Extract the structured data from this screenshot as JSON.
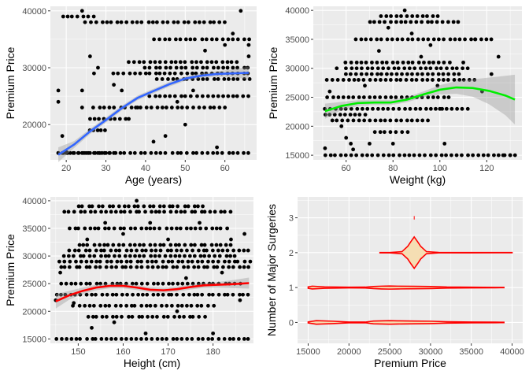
{
  "chart_data": [
    {
      "type": "scatter",
      "xlabel": "Age (years)",
      "ylabel": "Premium Price",
      "xlim": [
        16,
        68
      ],
      "ylim": [
        13800,
        40800
      ],
      "xticks": [
        20,
        30,
        40,
        50,
        60
      ],
      "yticks": [
        20000,
        30000,
        40000
      ],
      "grid": true,
      "smooth_color": "#3366ff",
      "smooth": {
        "x": [
          18,
          22,
          26,
          30,
          34,
          38,
          42,
          46,
          50,
          54,
          58,
          62,
          66
        ],
        "y": [
          14700,
          16500,
          18800,
          20800,
          22900,
          24700,
          25900,
          27100,
          28100,
          28600,
          28900,
          29000,
          29100
        ],
        "band": [
          1300,
          600,
          450,
          450,
          400,
          400,
          400,
          400,
          400,
          400,
          500,
          700,
          1100
        ]
      },
      "point_groups": [
        {
          "y": 15000,
          "x": [
            18,
            66
          ],
          "xs": [
            18,
            19,
            20,
            21,
            22,
            23,
            24,
            25,
            26,
            27,
            28,
            29,
            30,
            31,
            32
          ]
        },
        {
          "y": 23000,
          "x": [
            27,
            60
          ]
        },
        {
          "y": 25000,
          "x": [
            41,
            66
          ]
        },
        {
          "y": 28000,
          "x": [
            43,
            66
          ]
        },
        {
          "y": 29000,
          "x": [
            32,
            66
          ]
        },
        {
          "y": 30000,
          "x": [
            40,
            66
          ]
        },
        {
          "y": 31000,
          "x": [
            36,
            63
          ]
        },
        {
          "y": 35000,
          "x": [
            42,
            66
          ]
        },
        {
          "y": 38000,
          "x": [
            25,
            60
          ]
        },
        {
          "y": 39000,
          "x": [
            19,
            27
          ]
        },
        {
          "y": 21000,
          "x": [
            26,
            36
          ]
        },
        {
          "y": 19000,
          "x": [
            26,
            30
          ]
        }
      ],
      "extra_points": [
        [
          18,
          26000
        ],
        [
          18,
          24000
        ],
        [
          19,
          18000
        ],
        [
          20,
          15200
        ],
        [
          24,
          26000
        ],
        [
          24,
          23000
        ],
        [
          24,
          40000
        ],
        [
          26,
          32000
        ],
        [
          27,
          29000
        ],
        [
          28,
          30000
        ],
        [
          32,
          27000
        ],
        [
          34,
          26000
        ],
        [
          38,
          23000
        ],
        [
          42,
          17000
        ],
        [
          45,
          18000
        ],
        [
          48,
          24000
        ],
        [
          50,
          20000
        ],
        [
          52,
          26000
        ],
        [
          55,
          33000
        ],
        [
          58,
          16000
        ],
        [
          60,
          34000
        ],
        [
          62,
          36000
        ],
        [
          64,
          40000
        ],
        [
          66,
          32000
        ],
        [
          66,
          34000
        ]
      ]
    },
    {
      "type": "scatter",
      "xlabel": "Weight (kg)",
      "ylabel": "Premium Price",
      "xlim": [
        46,
        135
      ],
      "ylim": [
        14200,
        40700
      ],
      "xticks": [
        60,
        80,
        100,
        120
      ],
      "yticks": [
        15000,
        20000,
        25000,
        30000,
        35000,
        40000
      ],
      "grid": true,
      "smooth_color": "#00ee00",
      "smooth": {
        "x": [
          51,
          58,
          65,
          72,
          79,
          86,
          93,
          100,
          107,
          114,
          121,
          128,
          132
        ],
        "y": [
          22600,
          23500,
          24000,
          24100,
          24100,
          24600,
          25500,
          26300,
          26700,
          26600,
          26100,
          25300,
          24600
        ],
        "band": [
          1300,
          700,
          500,
          450,
          450,
          450,
          500,
          800,
          1100,
          1500,
          2300,
          3400,
          4300
        ]
      },
      "point_groups": [
        {
          "y": 15000,
          "x": [
            51,
            132
          ]
        },
        {
          "y": 23000,
          "x": [
            51,
            112
          ]
        },
        {
          "y": 25000,
          "x": [
            52,
            104
          ]
        },
        {
          "y": 28000,
          "x": [
            52,
            115
          ]
        },
        {
          "y": 29000,
          "x": [
            60,
            108
          ]
        },
        {
          "y": 30000,
          "x": [
            60,
            112
          ]
        },
        {
          "y": 31000,
          "x": [
            60,
            104
          ]
        },
        {
          "y": 35000,
          "x": [
            64,
            122
          ]
        },
        {
          "y": 38000,
          "x": [
            70,
            108
          ]
        },
        {
          "y": 39000,
          "x": [
            75,
            99
          ]
        },
        {
          "y": 21000,
          "x": [
            54,
            95
          ]
        },
        {
          "y": 19000,
          "x": [
            72,
            86
          ]
        },
        {
          "y": 22000,
          "x": [
            51,
            68
          ]
        }
      ],
      "extra_points": [
        [
          51,
          16200
        ],
        [
          53,
          26000
        ],
        [
          56,
          30000
        ],
        [
          58,
          20000
        ],
        [
          60,
          18000
        ],
        [
          62,
          17000
        ],
        [
          63,
          16000
        ],
        [
          68,
          27000
        ],
        [
          70,
          17000
        ],
        [
          74,
          33000
        ],
        [
          78,
          37000
        ],
        [
          80,
          17000
        ],
        [
          85,
          40000
        ],
        [
          88,
          36000
        ],
        [
          92,
          32000
        ],
        [
          96,
          34000
        ],
        [
          99,
          27000
        ],
        [
          100,
          23000
        ],
        [
          102,
          17000
        ],
        [
          110,
          31000
        ],
        [
          115,
          35000
        ],
        [
          118,
          26000
        ],
        [
          122,
          29000
        ],
        [
          125,
          32000
        ],
        [
          127,
          15000
        ],
        [
          130,
          15000
        ]
      ]
    },
    {
      "type": "scatter",
      "xlabel": "Height (cm)",
      "ylabel": "Premium Price",
      "xlim": [
        143.8,
        189
      ],
      "ylim": [
        14200,
        40700
      ],
      "xticks": [
        150,
        160,
        170,
        180,
        190
      ],
      "yticks": [
        15000,
        20000,
        25000,
        30000,
        35000,
        40000
      ],
      "grid": true,
      "smooth_color": "#ff0000",
      "smooth": {
        "x": [
          145,
          148,
          151,
          154,
          157,
          160,
          163,
          166,
          169,
          172,
          175,
          178,
          181,
          184,
          188
        ],
        "y": [
          21800,
          22900,
          23700,
          24300,
          24600,
          24600,
          24300,
          23900,
          23800,
          24000,
          24400,
          24700,
          24800,
          24900,
          25100
        ],
        "band": [
          1300,
          800,
          600,
          500,
          450,
          450,
          450,
          450,
          450,
          450,
          450,
          450,
          500,
          700,
          1000
        ]
      },
      "point_groups": [
        {
          "y": 15000,
          "x": [
            145,
            188
          ]
        },
        {
          "y": 23000,
          "x": [
            145,
            188
          ]
        },
        {
          "y": 25000,
          "x": [
            146,
            186
          ]
        },
        {
          "y": 28000,
          "x": [
            146,
            188
          ]
        },
        {
          "y": 29000,
          "x": [
            146,
            188
          ]
        },
        {
          "y": 30000,
          "x": [
            147,
            185
          ]
        },
        {
          "y": 31000,
          "x": [
            148,
            188
          ]
        },
        {
          "y": 35000,
          "x": [
            148,
            183
          ]
        },
        {
          "y": 38000,
          "x": [
            147,
            184
          ]
        },
        {
          "y": 39000,
          "x": [
            150,
            178
          ]
        },
        {
          "y": 21000,
          "x": [
            149,
            180
          ]
        },
        {
          "y": 19000,
          "x": [
            152,
            178
          ]
        },
        {
          "y": 32000,
          "x": [
            150,
            184
          ]
        }
      ],
      "extra_points": [
        [
          145,
          22000
        ],
        [
          146,
          27000
        ],
        [
          149,
          21500
        ],
        [
          152,
          33000
        ],
        [
          153,
          17000
        ],
        [
          156,
          36000
        ],
        [
          158,
          18000
        ],
        [
          160,
          34000
        ],
        [
          163,
          40000
        ],
        [
          165,
          16000
        ],
        [
          166,
          36000
        ],
        [
          170,
          33000
        ],
        [
          172,
          20000
        ],
        [
          174,
          26000
        ],
        [
          177,
          36000
        ],
        [
          180,
          16000
        ],
        [
          182,
          27000
        ],
        [
          184,
          33000
        ],
        [
          186,
          22000
        ],
        [
          187,
          34000
        ]
      ]
    },
    {
      "type": "violin",
      "xlabel": "Premium Price",
      "ylabel": "Number of Major Surgeries",
      "xlim": [
        13700,
        41300
      ],
      "ylim": [
        -0.6,
        3.6
      ],
      "xticks": [
        15000,
        20000,
        25000,
        30000,
        35000,
        40000
      ],
      "yticks": [
        0,
        1,
        2,
        3
      ],
      "grid": true,
      "fill_color": "#f5deb3",
      "line_color": "#ff0000",
      "violins": [
        {
          "y": 0,
          "x_min": 15000,
          "x_max": 39000,
          "x": [
            15000,
            16000,
            18000,
            20000,
            22000,
            23000,
            24000,
            25000,
            26000,
            28000,
            30000,
            32000,
            35000,
            38000,
            39000
          ],
          "half_width": [
            0.015,
            0.05,
            0.035,
            0.012,
            0.01,
            0.04,
            0.045,
            0.05,
            0.045,
            0.04,
            0.035,
            0.02,
            0.012,
            0.008,
            0.005
          ]
        },
        {
          "y": 1,
          "x_min": 15000,
          "x_max": 39000,
          "x": [
            15000,
            15500,
            17000,
            20000,
            22000,
            23000,
            24000,
            25000,
            26000,
            28000,
            30000,
            32000,
            35000,
            38000,
            39000
          ],
          "half_width": [
            0.02,
            0.04,
            0.02,
            0.01,
            0.012,
            0.03,
            0.04,
            0.045,
            0.04,
            0.035,
            0.03,
            0.015,
            0.01,
            0.006,
            0.004
          ]
        },
        {
          "y": 2,
          "x_min": 23800,
          "x_max": 40000,
          "x": [
            23800,
            25000,
            26500,
            27200,
            27600,
            28000,
            28400,
            28800,
            29500,
            31000,
            35000,
            40000
          ],
          "half_width": [
            0.004,
            0.005,
            0.03,
            0.18,
            0.32,
            0.45,
            0.32,
            0.18,
            0.03,
            0.006,
            0.004,
            0.003
          ]
        },
        {
          "y": 3,
          "x_min": 28000,
          "x_max": 28000,
          "x": [
            28000
          ],
          "half_width": [
            0.05
          ]
        }
      ]
    }
  ]
}
